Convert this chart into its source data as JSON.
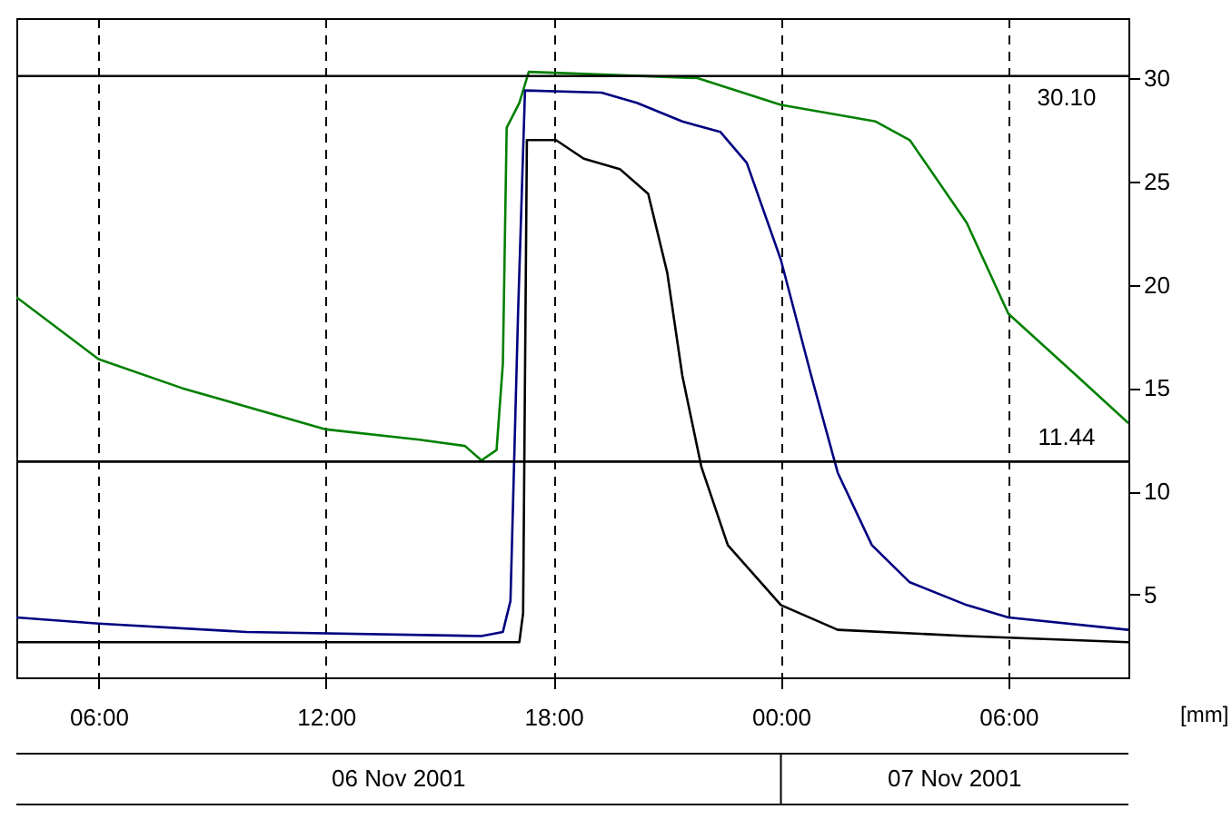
{
  "chart_data": {
    "type": "line",
    "ylabel": "[mm]",
    "annotations": [
      "06 Nov 2001",
      "07 Nov 2001"
    ],
    "xlim": [
      "2001-11-06T03:50",
      "2001-11-07T09:10"
    ],
    "xticks": [
      {
        "value": "2001-11-06T06:00",
        "label": "06:00"
      },
      {
        "value": "2001-11-06T12:00",
        "label": "12:00"
      },
      {
        "value": "2001-11-06T18:00",
        "label": "18:00"
      },
      {
        "value": "2001-11-07T00:00",
        "label": "00:00"
      },
      {
        "value": "2001-11-07T06:00",
        "label": "06:00"
      }
    ],
    "ylim": [
      1,
      32.9
    ],
    "yticks": [
      5,
      10,
      15,
      20,
      25,
      30
    ],
    "grid": "x",
    "line_style": "solid",
    "ref_lines": [
      {
        "axis": "y",
        "value": 30.1,
        "label": "30.10",
        "color": "#000000"
      },
      {
        "axis": "y",
        "value": 11.44,
        "label": "11.44",
        "color": "#000000"
      }
    ],
    "series": [
      {
        "color": "#008000",
        "x": [
          "2001-11-06T03:50",
          "2001-11-06T06:00",
          "2001-11-06T08:12",
          "2001-11-06T12:00",
          "2001-11-06T14:28",
          "2001-11-06T15:40",
          "2001-11-06T16:06",
          "2001-11-06T16:30",
          "2001-11-06T16:40",
          "2001-11-06T16:46",
          "2001-11-06T17:06",
          "2001-11-06T17:21",
          "2001-11-06T21:48",
          "2001-11-07T00:00",
          "2001-11-07T02:30",
          "2001-11-07T03:24",
          "2001-11-07T04:54",
          "2001-11-07T06:00",
          "2001-11-07T07:48",
          "2001-11-07T09:10"
        ],
        "values": [
          19.4,
          16.4,
          15.0,
          13.0,
          12.5,
          12.2,
          11.5,
          12.0,
          16.2,
          27.6,
          28.8,
          30.3,
          30.0,
          28.7,
          27.9,
          27.0,
          23.0,
          18.6,
          15.6,
          13.3
        ]
      },
      {
        "color": "#000080",
        "x": [
          "2001-11-06T03:50",
          "2001-11-06T06:00",
          "2001-11-06T09:54",
          "2001-11-06T16:06",
          "2001-11-06T16:40",
          "2001-11-06T16:52",
          "2001-11-06T17:04",
          "2001-11-06T17:15",
          "2001-11-06T19:16",
          "2001-11-06T20:12",
          "2001-11-06T21:24",
          "2001-11-06T22:24",
          "2001-11-06T23:06",
          "2001-11-07T00:00",
          "2001-11-07T00:48",
          "2001-11-07T01:30",
          "2001-11-07T02:24",
          "2001-11-07T03:24",
          "2001-11-07T04:54",
          "2001-11-07T06:00",
          "2001-11-07T09:10"
        ],
        "values": [
          3.9,
          3.6,
          3.2,
          3.0,
          3.2,
          4.7,
          18.6,
          29.4,
          29.3,
          28.8,
          27.9,
          27.4,
          25.9,
          21.2,
          15.6,
          10.9,
          7.4,
          5.6,
          4.5,
          3.9,
          3.3
        ]
      },
      {
        "color": "#000000",
        "x": [
          "2001-11-06T03:50",
          "2001-11-06T17:06",
          "2001-11-06T17:12",
          "2001-11-06T17:18",
          "2001-11-06T18:04",
          "2001-11-06T18:48",
          "2001-11-06T19:45",
          "2001-11-06T20:30",
          "2001-11-06T21:00",
          "2001-11-06T21:24",
          "2001-11-06T21:54",
          "2001-11-06T22:36",
          "2001-11-07T00:00",
          "2001-11-07T01:30",
          "2001-11-07T04:54",
          "2001-11-07T09:10"
        ],
        "values": [
          2.7,
          2.7,
          4.1,
          27.0,
          27.0,
          26.1,
          25.6,
          24.4,
          20.6,
          15.6,
          11.2,
          7.4,
          4.5,
          3.3,
          3.0,
          2.7
        ]
      }
    ]
  }
}
